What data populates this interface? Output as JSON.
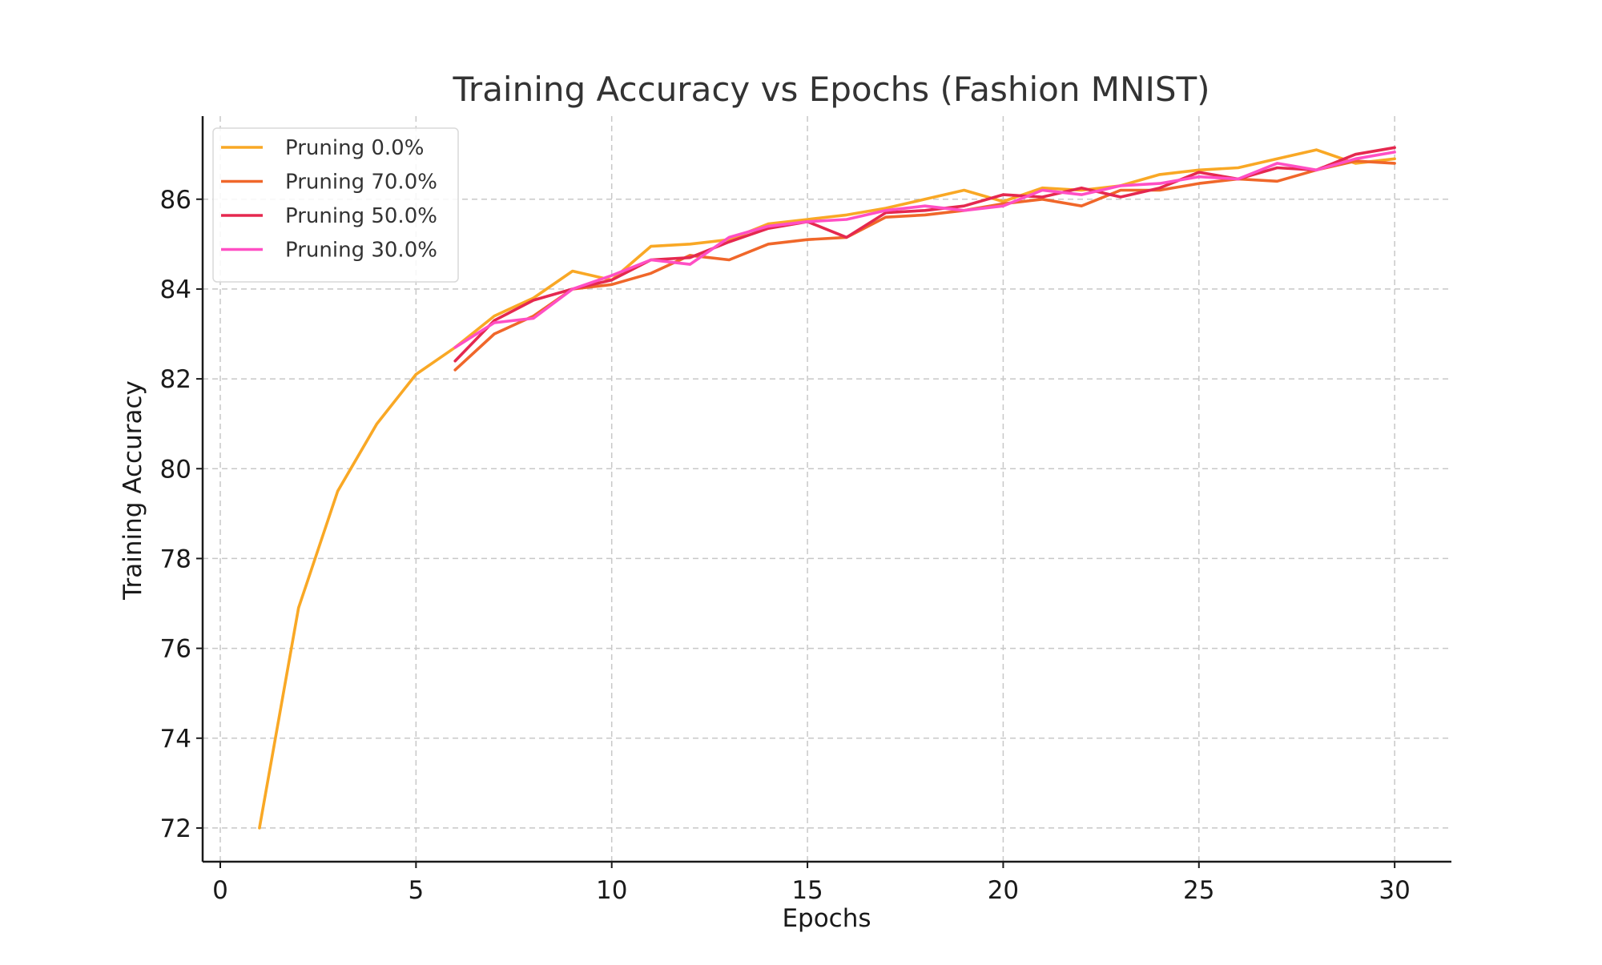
{
  "chart_data": {
    "type": "line",
    "title": "Training Accuracy vs Epochs (Fashion MNIST)",
    "xlabel": "Epochs",
    "ylabel": "Training Accuracy",
    "xlim": [
      -0.45,
      31.45
    ],
    "ylim": [
      71.25,
      87.85
    ],
    "xticks": [
      0,
      5,
      10,
      15,
      20,
      25,
      30
    ],
    "yticks": [
      72,
      74,
      76,
      78,
      80,
      82,
      84,
      86
    ],
    "grid": true,
    "legend_position": "top-left",
    "series": [
      {
        "name": "Pruning 0.0%",
        "color": "#f9a825",
        "x": [
          1,
          2,
          3,
          4,
          5,
          6,
          7,
          8,
          9,
          10,
          11,
          12,
          13,
          14,
          15,
          16,
          17,
          18,
          19,
          20,
          21,
          22,
          23,
          24,
          25,
          26,
          27,
          28,
          29,
          30
        ],
        "y": [
          72.0,
          76.9,
          79.5,
          81.0,
          82.1,
          82.7,
          83.4,
          83.8,
          84.4,
          84.2,
          84.95,
          85.0,
          85.1,
          85.45,
          85.55,
          85.65,
          85.8,
          86.0,
          86.2,
          85.95,
          86.25,
          86.2,
          86.3,
          86.55,
          86.65,
          86.7,
          86.9,
          87.1,
          86.8,
          86.9
        ]
      },
      {
        "name": "Pruning 70.0%",
        "color": "#f0672a",
        "x": [
          6,
          7,
          8,
          9,
          10,
          11,
          12,
          13,
          14,
          15,
          16,
          17,
          18,
          19,
          20,
          21,
          22,
          23,
          24,
          25,
          26,
          27,
          28,
          29,
          30
        ],
        "y": [
          82.2,
          83.0,
          83.4,
          84.0,
          84.1,
          84.35,
          84.75,
          84.65,
          85.0,
          85.1,
          85.15,
          85.6,
          85.65,
          85.75,
          85.9,
          86.0,
          85.85,
          86.2,
          86.2,
          86.35,
          86.45,
          86.4,
          86.65,
          86.85,
          86.8
        ]
      },
      {
        "name": "Pruning 50.0%",
        "color": "#e5284f",
        "x": [
          6,
          7,
          8,
          9,
          10,
          11,
          12,
          13,
          14,
          15,
          16,
          17,
          18,
          19,
          20,
          21,
          22,
          23,
          24,
          25,
          26,
          27,
          28,
          29,
          30
        ],
        "y": [
          82.4,
          83.3,
          83.75,
          84.0,
          84.2,
          84.65,
          84.7,
          85.05,
          85.35,
          85.5,
          85.15,
          85.7,
          85.75,
          85.85,
          86.1,
          86.05,
          86.25,
          86.05,
          86.25,
          86.6,
          86.45,
          86.7,
          86.65,
          87.0,
          87.15
        ]
      },
      {
        "name": "Pruning 30.0%",
        "color": "#ff4fc4",
        "x": [
          6,
          7,
          8,
          9,
          10,
          11,
          12,
          13,
          14,
          15,
          16,
          17,
          18,
          19,
          20,
          21,
          22,
          23,
          24,
          25,
          26,
          27,
          28,
          29,
          30
        ],
        "y": [
          82.7,
          83.25,
          83.35,
          84.0,
          84.3,
          84.65,
          84.55,
          85.15,
          85.4,
          85.5,
          85.55,
          85.75,
          85.85,
          85.75,
          85.85,
          86.2,
          86.1,
          86.3,
          86.35,
          86.5,
          86.45,
          86.8,
          86.65,
          86.9,
          87.05
        ]
      }
    ]
  }
}
